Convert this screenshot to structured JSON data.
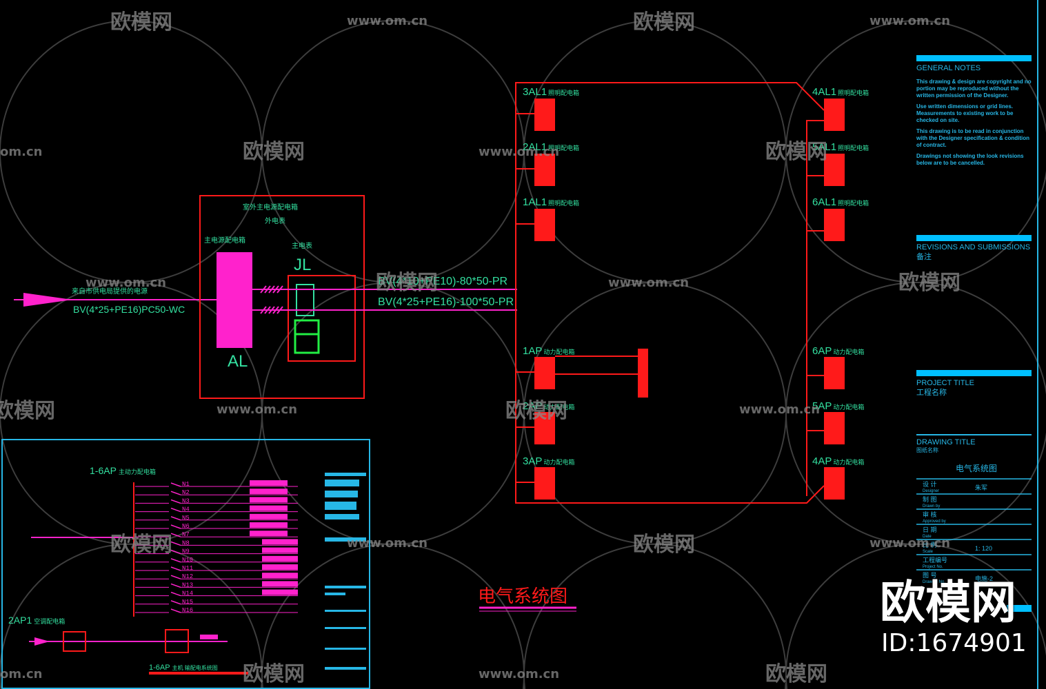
{
  "colors": {
    "background": "#000000",
    "bus": "#ff1a1a",
    "panel": "#ff1a1a",
    "cable": "#ff22cc",
    "text": "#33e0a0",
    "titleblock": "#27b7e6"
  },
  "source": {
    "label": "来自市供电局提供的电源",
    "cable": "BV(4*25+PE16)PC50-WC"
  },
  "main_box": {
    "title": "室外主电源配电箱",
    "subtitle": "外电表",
    "al_caption": "主电源配电箱",
    "al": "AL",
    "jl_caption": "主电表",
    "jl": "JL"
  },
  "feeders": {
    "upper": "BV(4*10+PE10)-80*50-PR",
    "lower": "BV(4*25+PE16)-100*50-PR"
  },
  "lighting_panels": [
    {
      "id": "3AL1",
      "desc": "照明配电箱"
    },
    {
      "id": "2AL1",
      "desc": "照明配电箱"
    },
    {
      "id": "1AL1",
      "desc": "照明配电箱"
    },
    {
      "id": "4AL1",
      "desc": "照明配电箱"
    },
    {
      "id": "5AL1",
      "desc": "照明配电箱"
    },
    {
      "id": "6AL1",
      "desc": "照明配电箱"
    }
  ],
  "power_panels": [
    {
      "id": "1AP",
      "desc": "动力配电箱"
    },
    {
      "id": "2AP",
      "desc": "动力配电箱"
    },
    {
      "id": "3AP",
      "desc": "动力配电箱"
    },
    {
      "id": "6AP",
      "desc": "动力配电箱"
    },
    {
      "id": "5AP",
      "desc": "动力配电箱"
    },
    {
      "id": "4AP",
      "desc": "动力配电箱"
    }
  ],
  "detail": {
    "panel_title": "1-6AP",
    "panel_desc": "主动力配电箱",
    "ac_title": "2AP1",
    "ac_desc": "空调配电箱",
    "footer": "1-6AP",
    "footer_desc": "主机 输配电系统图",
    "circuits": [
      "N1",
      "N2",
      "N3",
      "N4",
      "N5",
      "N6",
      "N7",
      "N8",
      "N9",
      "N10",
      "N11",
      "N12",
      "N13",
      "N14",
      "N15",
      "N16"
    ]
  },
  "drawing_title": "电气系统图",
  "titleblock": {
    "general_notes": "GENERAL NOTES",
    "notes": [
      "This drawing & design are copyright and no portion may be reproduced without the written permission of the Designer.",
      "Use written dimensions or grid lines. Measurements to existing work to be checked on site.",
      "This drawing is to be read in conjunction with the Designer specification & condition of contract.",
      "Drawings not showing the look revisions below are to be cancelled."
    ],
    "revisions": "REVISIONS AND SUBMISSIONS",
    "revisions_cn": "备注",
    "project_title": "PROJECT TITLE",
    "project_title_cn": "工程名称",
    "drawing_title_label": "DRAWING TITLE",
    "drawing_title_cn": "图纸名称",
    "drawing_name": "电气系统图",
    "rows": [
      {
        "cn": "设 计",
        "en": "Designer",
        "value": "朱军"
      },
      {
        "cn": "制 图",
        "en": "Drawn by",
        "value": ""
      },
      {
        "cn": "审 核",
        "en": "Approved by",
        "value": ""
      },
      {
        "cn": "日 期",
        "en": "Date",
        "value": ""
      },
      {
        "cn": "比 例",
        "en": "Scale",
        "value": "1: 120"
      },
      {
        "cn": "工程编号",
        "en": "Project No.",
        "value": ""
      },
      {
        "cn": "图 号",
        "en": "Drawing No.",
        "value": "电施-2"
      }
    ]
  },
  "watermark": {
    "brand": "欧模网",
    "url": "www.om.cn",
    "id": "ID:1674901"
  }
}
